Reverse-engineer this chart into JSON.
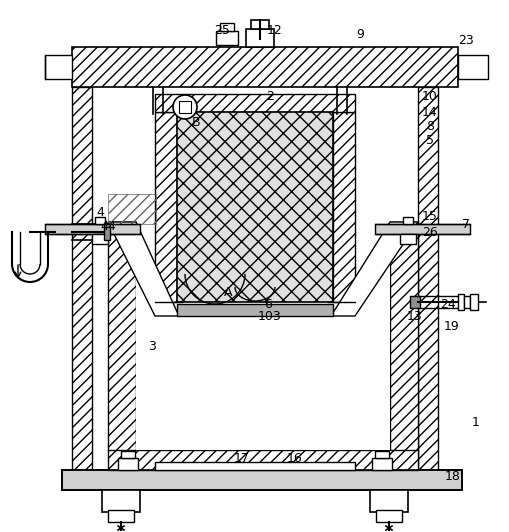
{
  "background_color": "#ffffff",
  "line_color": "#000000",
  "label_fontsize": 9,
  "label_color": "#000000"
}
